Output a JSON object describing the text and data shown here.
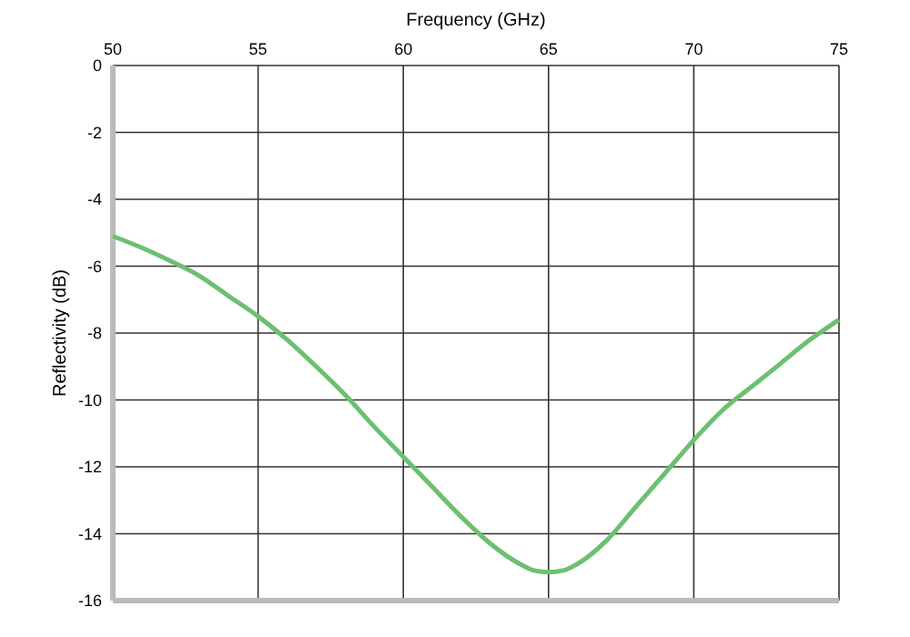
{
  "chart_data": {
    "type": "line",
    "xlabel": "Frequency (GHz)",
    "ylabel": "Reflectivity (dB)",
    "x": [
      50,
      51,
      52,
      53,
      54,
      55,
      56,
      57,
      58,
      59,
      60,
      61,
      62,
      63,
      64,
      64.5,
      65,
      65.5,
      66,
      67,
      68,
      69,
      70,
      71,
      72,
      73,
      74,
      75
    ],
    "series": [
      {
        "color": "#6cc070",
        "values": [
          -5.1,
          -5.45,
          -5.85,
          -6.3,
          -6.9,
          -7.5,
          -8.2,
          -9,
          -9.85,
          -10.8,
          -11.7,
          -12.6,
          -13.5,
          -14.3,
          -14.9,
          -15.1,
          -15.15,
          -15.1,
          -14.9,
          -14.2,
          -13.2,
          -12.2,
          -11.2,
          -10.3,
          -9.6,
          -8.9,
          -8.2,
          -7.6
        ]
      }
    ],
    "xlim": [
      50,
      75
    ],
    "xticks": [
      50,
      55,
      60,
      65,
      70,
      75
    ],
    "ylim": [
      -16,
      0
    ],
    "yticks": [
      0,
      -2,
      -4,
      -6,
      -8,
      -10,
      -12,
      -14,
      -16
    ],
    "grid": true,
    "line_style": "solid"
  }
}
